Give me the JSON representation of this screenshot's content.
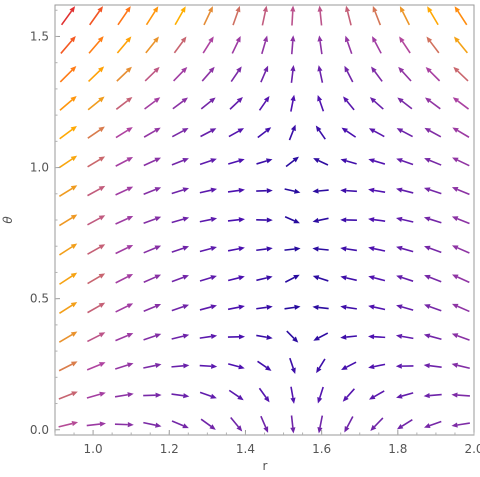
{
  "chart_data": {
    "type": "vector_field",
    "title": "",
    "xlabel": "r",
    "ylabel": "θ",
    "xlim": [
      0.9,
      2.0
    ],
    "ylim": [
      -0.02,
      1.62
    ],
    "xticks": [
      1.0,
      1.2,
      1.4,
      1.6,
      1.8,
      2.0
    ],
    "xtick_labels": [
      "1.0",
      "1.2",
      "1.4",
      "1.6",
      "1.8",
      "2.0"
    ],
    "yticks": [
      0.0,
      0.5,
      1.0,
      1.5
    ],
    "ytick_labels": [
      "0.0",
      "0.5",
      "1.0",
      "1.5"
    ],
    "grid": false,
    "frame": true,
    "sample_grid": {
      "nx": 15,
      "ny": 15,
      "x_range": [
        0.935,
        1.965
      ],
      "y_range": [
        0.02,
        1.58
      ]
    },
    "field": {
      "fixed_point": [
        1.55,
        0.7
      ],
      "dr_expression": "r_fixed - r",
      "dtheta_expression": "k * (r - r_fixed)^2 - 0.3 * (theta - theta_fixed)",
      "k": 1.5
    },
    "colormap": [
      "#1f0a9a",
      "#4d10b0",
      "#7a2aa6",
      "#b044a0",
      "#ffb000",
      "#ff6f1a",
      "#e03030"
    ],
    "color_scale": "arrow speed (low = dark blue, high = orange)"
  }
}
